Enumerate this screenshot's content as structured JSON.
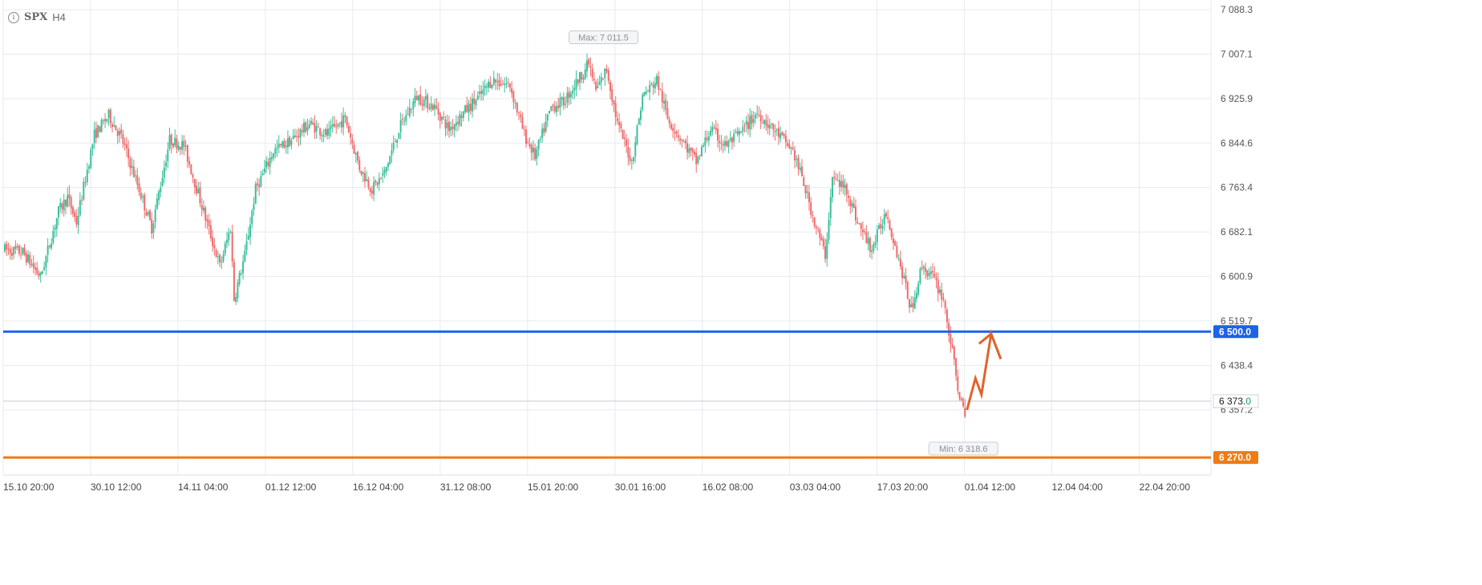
{
  "header": {
    "symbol": "SPX",
    "timeframe": "H4",
    "info_icon": "info-icon"
  },
  "colors": {
    "up": "#3bbf9a",
    "down": "#ef6b6b",
    "grid": "#e6eaf2",
    "support_blue": "#1e63e6",
    "support_orange": "#f07b13",
    "arrow": "#e0632a",
    "current_value": "#16a34a"
  },
  "chart_data": {
    "type": "ohlc",
    "ylim": [
      6238.0,
      7106.0
    ],
    "y_ticks": [
      7088.3,
      7007.1,
      6925.9,
      6844.6,
      6763.4,
      6682.1,
      6600.9,
      6519.7,
      6438.4,
      6357.2
    ],
    "y_tick_labels": [
      "7 088.3",
      "7 007.1",
      "6 925.9",
      "6 844.6",
      "6 763.4",
      "6 682.1",
      "6 600.9",
      "6 519.7",
      "6 438.4",
      "6 357.2"
    ],
    "x_tick_labels": [
      "15.10 20:00",
      "30.10 12:00",
      "14.11 04:00",
      "01.12 12:00",
      "16.12 04:00",
      "31.12 08:00",
      "15.01 20:00",
      "30.01 16:00",
      "16.02 08:00",
      "03.03 04:00",
      "17.03 20:00",
      "01.04 12:00",
      "12.04 04:00",
      "22.04 20:00"
    ],
    "trend_anchors": [
      [
        0,
        6650
      ],
      [
        10,
        6645
      ],
      [
        20,
        6600
      ],
      [
        30,
        6720
      ],
      [
        35,
        6745
      ],
      [
        40,
        6700
      ],
      [
        50,
        6860
      ],
      [
        58,
        6895
      ],
      [
        65,
        6855
      ],
      [
        75,
        6760
      ],
      [
        82,
        6690
      ],
      [
        92,
        6850
      ],
      [
        100,
        6840
      ],
      [
        110,
        6730
      ],
      [
        120,
        6620
      ],
      [
        126,
        6690
      ],
      [
        128,
        6560
      ],
      [
        134,
        6640
      ],
      [
        140,
        6760
      ],
      [
        150,
        6830
      ],
      [
        160,
        6850
      ],
      [
        170,
        6880
      ],
      [
        180,
        6860
      ],
      [
        190,
        6890
      ],
      [
        198,
        6800
      ],
      [
        205,
        6760
      ],
      [
        212,
        6790
      ],
      [
        220,
        6870
      ],
      [
        230,
        6930
      ],
      [
        240,
        6910
      ],
      [
        248,
        6870
      ],
      [
        256,
        6900
      ],
      [
        265,
        6930
      ],
      [
        272,
        6960
      ],
      [
        282,
        6950
      ],
      [
        290,
        6860
      ],
      [
        296,
        6820
      ],
      [
        305,
        6910
      ],
      [
        312,
        6920
      ],
      [
        320,
        6960
      ],
      [
        326,
        6990
      ],
      [
        330,
        6940
      ],
      [
        336,
        6980
      ],
      [
        342,
        6880
      ],
      [
        350,
        6810
      ],
      [
        356,
        6930
      ],
      [
        364,
        6960
      ],
      [
        370,
        6890
      ],
      [
        378,
        6850
      ],
      [
        386,
        6810
      ],
      [
        394,
        6870
      ],
      [
        402,
        6840
      ],
      [
        410,
        6860
      ],
      [
        420,
        6900
      ],
      [
        426,
        6880
      ],
      [
        432,
        6860
      ],
      [
        440,
        6830
      ],
      [
        446,
        6770
      ],
      [
        452,
        6700
      ],
      [
        458,
        6640
      ],
      [
        462,
        6780
      ],
      [
        470,
        6760
      ],
      [
        476,
        6700
      ],
      [
        484,
        6650
      ],
      [
        492,
        6720
      ],
      [
        500,
        6620
      ],
      [
        506,
        6540
      ],
      [
        512,
        6620
      ],
      [
        518,
        6600
      ],
      [
        524,
        6560
      ],
      [
        528,
        6480
      ],
      [
        532,
        6400
      ],
      [
        536,
        6340
      ]
    ],
    "max_label": "Max: 7 011.5",
    "max_value": 7011.5,
    "max_x_frac": 0.497,
    "min_label": "Min: 6 318.6",
    "min_value": 6318.6,
    "min_x_frac": 0.795,
    "levels": [
      {
        "name": "resistance",
        "value": 6500.0,
        "label": "6 500.0",
        "color": "#1e63e6"
      },
      {
        "name": "support",
        "value": 6270.0,
        "label": "6 270.0",
        "color": "#f07b13"
      }
    ],
    "current_price": {
      "value": 6373.0,
      "label": "6 373.",
      "label_tail": "0"
    },
    "projection_arrow": [
      {
        "x_frac": 0.798,
        "value": 6357
      },
      {
        "x_frac": 0.805,
        "value": 6415
      },
      {
        "x_frac": 0.81,
        "value": 6385
      },
      {
        "x_frac": 0.818,
        "value": 6496
      },
      {
        "x_frac": 0.826,
        "value": 6450
      }
    ],
    "arrow_head_anchor": {
      "x_frac": 0.808,
      "value": 6478
    },
    "grid": true
  }
}
